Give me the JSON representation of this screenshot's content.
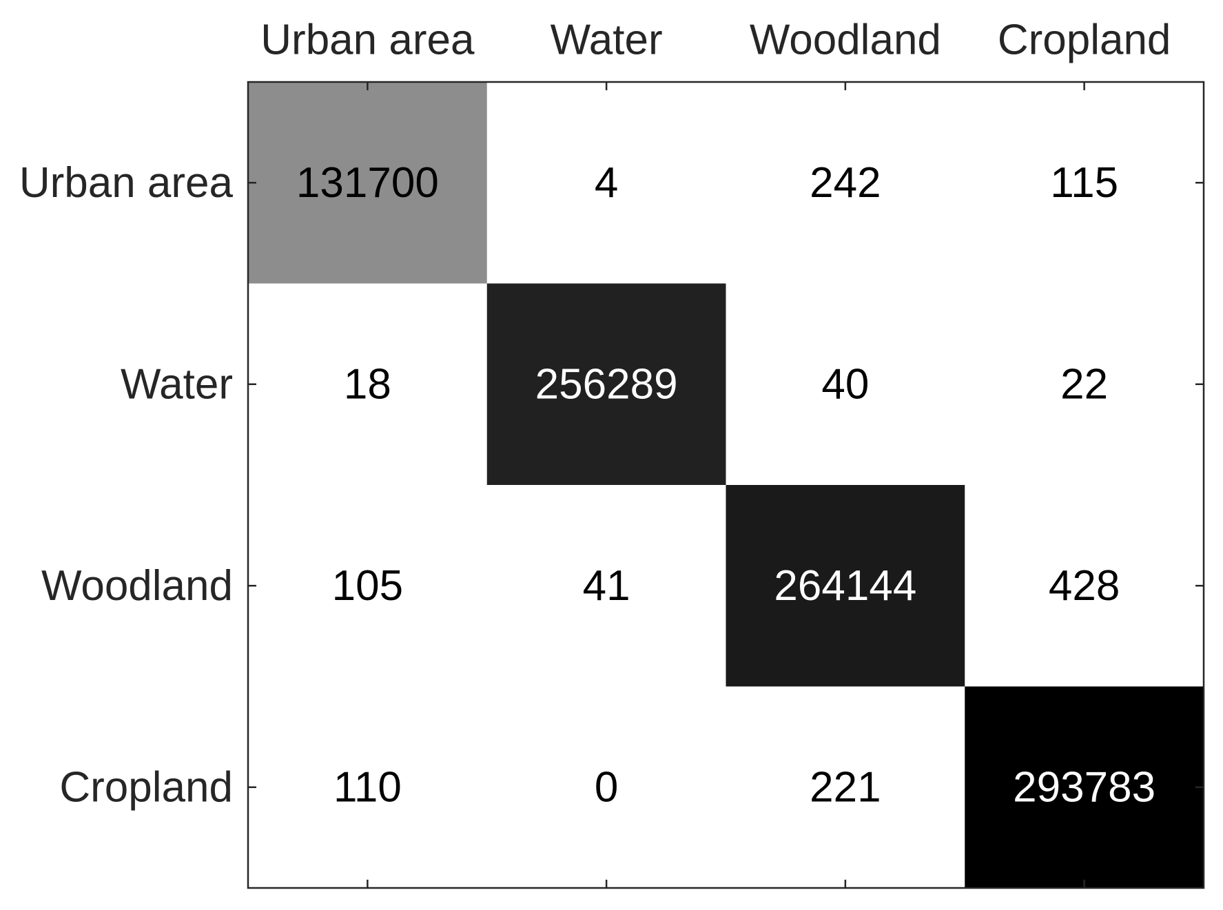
{
  "chart_data": {
    "type": "heatmap",
    "title": "",
    "xlabel": "",
    "ylabel": "",
    "categories": [
      "Urban area",
      "Water",
      "Woodland",
      "Cropland"
    ],
    "row_labels": [
      "Urban area",
      "Water",
      "Woodland",
      "Cropland"
    ],
    "col_labels": [
      "Urban area",
      "Water",
      "Woodland",
      "Cropland"
    ],
    "x_axis_position": "top",
    "colormap": "gray (white = 0, black = max)",
    "colors": {
      "low": "#ffffff",
      "high": "#000000",
      "axis": "#262626",
      "text_dark": "#000000",
      "text_light": "#ffffff"
    },
    "values": [
      [
        131700,
        4,
        242,
        115
      ],
      [
        18,
        256289,
        40,
        22
      ],
      [
        105,
        41,
        264144,
        428
      ],
      [
        110,
        0,
        221,
        293783
      ]
    ],
    "value_labels": [
      [
        "131700",
        "4",
        "242",
        "115"
      ],
      [
        "18",
        "256289",
        "40",
        "22"
      ],
      [
        "105",
        "41",
        "264144",
        "428"
      ],
      [
        "110",
        "0",
        "221",
        "293783"
      ]
    ],
    "grid": false,
    "legend": "none"
  }
}
